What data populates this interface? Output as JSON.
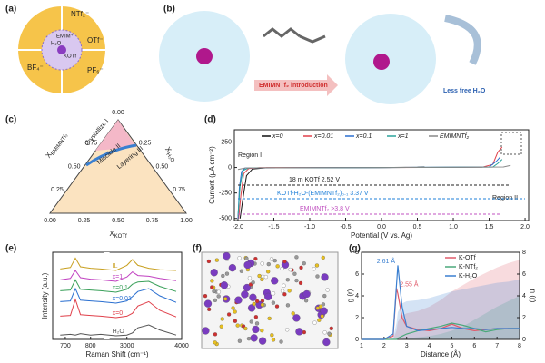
{
  "panels": {
    "labels": [
      "(a)",
      "(b)",
      "(c)",
      "(d)",
      "(e)",
      "(f)",
      "(g)"
    ],
    "a": {
      "ions": [
        "NTf₂⁻",
        "OTf⁻",
        "BF₄⁻",
        "PF₆⁻"
      ],
      "center": [
        "H₂O",
        "KOTf",
        "EMIM⁺"
      ]
    },
    "b": {
      "arrows": [
        "EMIMNTf₂ introduction",
        "Less free H₂O"
      ]
    },
    "c": {
      "regions": [
        "Crystallize I",
        "Miscible II",
        "Layering III"
      ],
      "axes": [
        {
          "symbol": "X",
          "sub": "EMIMNTf₂"
        },
        {
          "symbol": "X",
          "sub": "H₂O"
        },
        {
          "symbol": "X",
          "sub": "KOTf"
        }
      ],
      "ticks": [
        "0.00",
        "0.25",
        "0.50",
        "0.75",
        "1.00"
      ]
    }
  },
  "chart_data": [
    {
      "type": "line",
      "xlabel": "Potential (V vs. Ag)",
      "ylabel": "Current (μA cm⁻²)",
      "xlim": [
        -2.05,
        2.05
      ],
      "ylim": [
        -520,
        370
      ],
      "xticks": [
        {
          "value": -2,
          "label": "-2.0"
        },
        {
          "value": -1.5,
          "label": "-1.5"
        },
        {
          "value": -1,
          "label": "-1.0"
        },
        {
          "value": -0.5,
          "label": "-0.5"
        },
        {
          "value": 0,
          "label": "0.0"
        },
        {
          "value": 0.5,
          "label": "0.5"
        },
        {
          "value": 1,
          "label": "1.0"
        },
        {
          "value": 1.5,
          "label": "1.5"
        },
        {
          "value": 2,
          "label": "2.0"
        }
      ],
      "yticks": [
        -500,
        -250,
        0,
        250
      ],
      "series": [
        {
          "name": "x=0",
          "color": "#111111",
          "x": [
            -1.97,
            -1.93,
            -1.88,
            -1.8,
            -1.6,
            0,
            0.5,
            0.6
          ],
          "values": [
            -500,
            -300,
            -80,
            -15,
            -3,
            0,
            2,
            5
          ]
        },
        {
          "name": "x=0.01",
          "color": "#e0404a",
          "x": [
            -1.99,
            -1.96,
            -1.92,
            -1.85,
            -1.7,
            0,
            1.4,
            1.55,
            1.62,
            1.68
          ],
          "values": [
            -500,
            -280,
            -60,
            -10,
            -2,
            0,
            2,
            30,
            150,
            200
          ]
        },
        {
          "name": "x=0.1",
          "color": "#2a6fd0",
          "x": [
            -2.0,
            -1.98,
            -1.95,
            -1.9,
            0,
            1.5,
            1.6,
            1.65
          ],
          "values": [
            -500,
            -200,
            -40,
            -5,
            0,
            5,
            60,
            100
          ]
        },
        {
          "name": "x=1",
          "color": "#2aa39a",
          "x": [
            -2.0,
            -1.97,
            -1.93,
            -1.85,
            0,
            1.55,
            1.62,
            1.68
          ],
          "values": [
            -480,
            -180,
            -30,
            -4,
            0,
            4,
            40,
            80
          ]
        },
        {
          "name": "EMIMNTf₂",
          "color": "#888888",
          "x": [
            -2.0,
            -1.9,
            0,
            1.7,
            1.8
          ],
          "values": [
            -20,
            -5,
            0,
            5,
            20
          ]
        }
      ],
      "annotations": [
        "Region I",
        "Region II",
        "18 m KOTf  2.52 V",
        "KOTf-H₂O-(EMIMNTf₂)₀.₁  3.37 V",
        "EMIMNTf₂  >3.8 V"
      ]
    },
    {
      "type": "line",
      "xlabel": "Raman Shift (cm⁻¹)",
      "ylabel": "Intensity (a.u.)",
      "xlim": [
        650,
        4000
      ],
      "axis_break": [
        850,
        2700
      ],
      "ylim": [
        0,
        12
      ],
      "xticks": [
        700,
        800,
        3000,
        4000
      ],
      "x": [
        680,
        720,
        740,
        760,
        800,
        840,
        2800,
        3000,
        3100,
        3200,
        3400,
        3600,
        3900
      ],
      "series": [
        {
          "name": "H₂O",
          "color": "#555555",
          "values": [
            0.6,
            0.7,
            0.6,
            0.8,
            0.6,
            0.7,
            0.5,
            0.6,
            0.9,
            1.6,
            2.0,
            1.3,
            0.6
          ]
        },
        {
          "name": "x=0",
          "color": "#e0404a",
          "values": [
            3.2,
            3.3,
            5.5,
            3.4,
            3.3,
            3.2,
            3.0,
            3.2,
            3.6,
            4.6,
            5.2,
            4.0,
            3.1
          ]
        },
        {
          "name": "x=0.01",
          "color": "#2a6fd0",
          "values": [
            5.2,
            5.3,
            7.0,
            5.4,
            5.3,
            5.2,
            5.0,
            5.3,
            5.9,
            6.6,
            7.0,
            6.0,
            5.1
          ]
        },
        {
          "name": "x=0.1",
          "color": "#3aa05a",
          "values": [
            6.7,
            6.8,
            8.2,
            6.9,
            6.8,
            6.7,
            6.5,
            6.9,
            7.6,
            7.9,
            8.0,
            7.3,
            6.6
          ]
        },
        {
          "name": "x=1",
          "color": "#c040c0",
          "values": [
            8.2,
            8.4,
            9.5,
            8.5,
            8.3,
            8.2,
            8.0,
            8.6,
            9.3,
            8.8,
            8.7,
            8.4,
            8.1
          ]
        },
        {
          "name": "IL",
          "color": "#c8a020",
          "values": [
            9.7,
            9.9,
            11.2,
            10.0,
            9.8,
            9.7,
            9.5,
            10.2,
            11.0,
            10.2,
            9.8,
            9.6,
            9.5
          ]
        }
      ]
    },
    {
      "type": "line",
      "xlabel": "Distance (Å)",
      "ylabel": "g (r)",
      "y2label": "n (r)",
      "xlim": [
        1,
        8
      ],
      "ylim": [
        0,
        8
      ],
      "y2lim": [
        0,
        8
      ],
      "xticks": [
        1,
        2,
        3,
        4,
        5,
        6,
        7,
        8
      ],
      "yticks": [
        0,
        2,
        4,
        6,
        8
      ],
      "y2ticks": [
        0,
        2,
        4,
        6,
        8
      ],
      "x": [
        1,
        2,
        2.4,
        2.55,
        2.61,
        2.8,
        3,
        3.5,
        4,
        4.5,
        5,
        5.5,
        6,
        6.5,
        7,
        7.5,
        8
      ],
      "series": [
        {
          "name": "K-OTf",
          "color": "#e05a6a",
          "values": [
            0,
            0,
            0.3,
            4.7,
            4.2,
            2.0,
            1.2,
            0.9,
            0.8,
            1.0,
            1.4,
            1.0,
            0.8,
            0.9,
            1.0,
            1.0,
            1.0
          ],
          "n_values": [
            0,
            0,
            0,
            0.8,
            1.6,
            2.2,
            2.4,
            2.6,
            3,
            3.6,
            4.4,
            5.0,
            5.6,
            6.1,
            6.6,
            7.0,
            7.3
          ]
        },
        {
          "name": "K-NTf₂",
          "color": "#4aa87a",
          "values": [
            0,
            0,
            0,
            0,
            0.1,
            0.3,
            0.5,
            0.8,
            1.0,
            1.2,
            1.5,
            1.3,
            1.0,
            0.7,
            0.9,
            1.0,
            1.0
          ],
          "n_values": [
            0,
            0,
            0,
            0,
            0,
            0.05,
            0.1,
            0.2,
            0.3,
            0.5,
            0.8,
            1.2,
            1.8,
            2.4,
            3.0,
            3.5,
            4.0
          ]
        },
        {
          "name": "K-H₂O",
          "color": "#3a7fd0",
          "values": [
            0,
            0,
            0.5,
            5,
            6.8,
            3,
            1.2,
            0.8,
            0.9,
            1.0,
            1.1,
            1.0,
            1.0,
            0.9,
            1.0,
            1.0,
            1.0
          ],
          "n_values": [
            0,
            0,
            0.1,
            1.5,
            2.5,
            3.3,
            3.5,
            3.6,
            3.8,
            4.1,
            4.4,
            4.6,
            4.8,
            5.0,
            5.2,
            5.3,
            5.5
          ]
        }
      ],
      "annotations": [
        "2.61 Å",
        "2.55 Å"
      ]
    }
  ]
}
